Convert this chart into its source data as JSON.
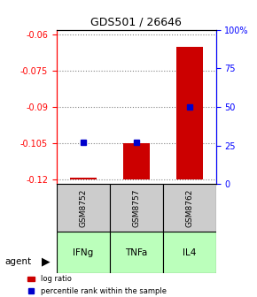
{
  "title": "GDS501 / 26646",
  "samples": [
    "GSM8752",
    "GSM8757",
    "GSM8762"
  ],
  "agents": [
    "IFNg",
    "TNFa",
    "IL4"
  ],
  "log_ratios": [
    -0.1195,
    -0.105,
    -0.065
  ],
  "percentile_ranks": [
    27,
    27,
    50
  ],
  "ylim_left": [
    -0.122,
    -0.058
  ],
  "ylim_right": [
    0,
    100
  ],
  "yticks_left": [
    -0.12,
    -0.105,
    -0.09,
    -0.075,
    -0.06
  ],
  "ytick_left_labels": [
    "-0.12",
    "-0.105",
    "-0.09",
    "-0.075",
    "-0.06"
  ],
  "yticks_right": [
    0,
    25,
    50,
    75,
    100
  ],
  "ytick_right_labels": [
    "0",
    "25",
    "50",
    "75",
    "100%"
  ],
  "bar_color": "#cc0000",
  "percentile_color": "#0000cc",
  "sample_box_color": "#cccccc",
  "grid_color": "#808080",
  "baseline": -0.12,
  "agent_bg": "#bbffbb"
}
